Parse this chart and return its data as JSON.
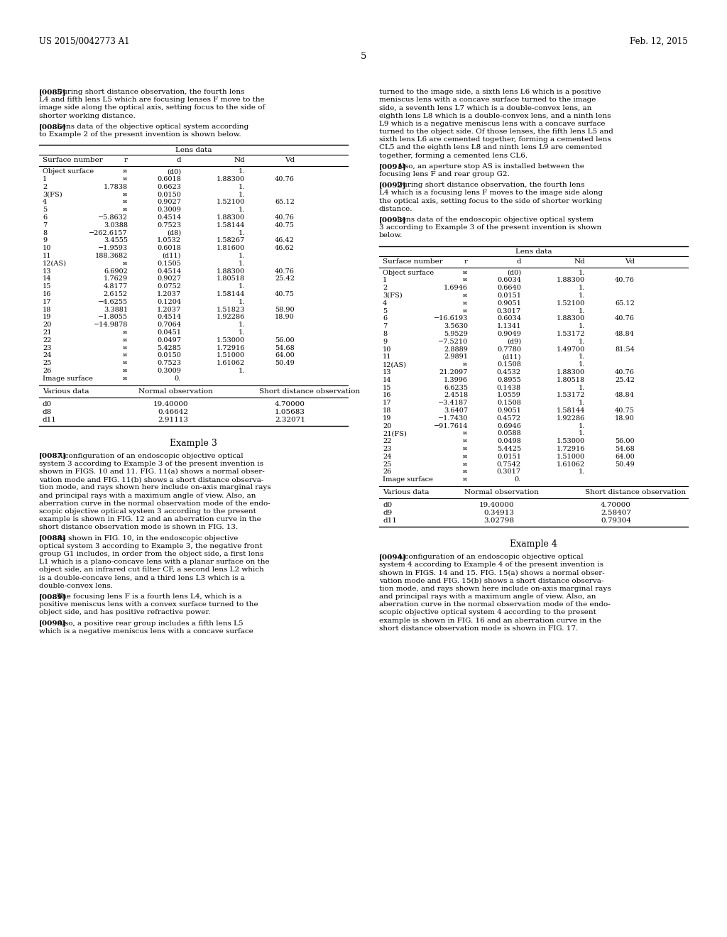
{
  "header_left": "US 2015/0042773 A1",
  "header_right": "Feb. 12, 2015",
  "page_number": "5",
  "background_color": "#ffffff",
  "table1_rows": [
    [
      "Object surface",
      "∞",
      "(d0)",
      "1.",
      ""
    ],
    [
      "1",
      "∞",
      "0.6018",
      "1.88300",
      "40.76"
    ],
    [
      "2",
      "1.7838",
      "0.6623",
      "1.",
      ""
    ],
    [
      "3(FS)",
      "∞",
      "0.0150",
      "1.",
      ""
    ],
    [
      "4",
      "∞",
      "0.9027",
      "1.52100",
      "65.12"
    ],
    [
      "5",
      "∞",
      "0.3009",
      "1.",
      ""
    ],
    [
      "6",
      "−5.8632",
      "0.4514",
      "1.88300",
      "40.76"
    ],
    [
      "7",
      "3.0388",
      "0.7523",
      "1.58144",
      "40.75"
    ],
    [
      "8",
      "−262.6157",
      "(d8)",
      "1.",
      ""
    ],
    [
      "9",
      "3.4555",
      "1.0532",
      "1.58267",
      "46.42"
    ],
    [
      "10",
      "−1.9593",
      "0.6018",
      "1.81600",
      "46.62"
    ],
    [
      "11",
      "188.3682",
      "(d11)",
      "1.",
      ""
    ],
    [
      "12(AS)",
      "∞",
      "0.1505",
      "1.",
      ""
    ],
    [
      "13",
      "6.6902",
      "0.4514",
      "1.88300",
      "40.76"
    ],
    [
      "14",
      "1.7629",
      "0.9027",
      "1.80518",
      "25.42"
    ],
    [
      "15",
      "4.8177",
      "0.0752",
      "1.",
      ""
    ],
    [
      "16",
      "2.6152",
      "1.2037",
      "1.58144",
      "40.75"
    ],
    [
      "17",
      "−4.6255",
      "0.1204",
      "1.",
      ""
    ],
    [
      "18",
      "3.3881",
      "1.2037",
      "1.51823",
      "58.90"
    ],
    [
      "19",
      "−1.8055",
      "0.4514",
      "1.92286",
      "18.90"
    ],
    [
      "20",
      "−14.9878",
      "0.7064",
      "1.",
      ""
    ],
    [
      "21",
      "∞",
      "0.0451",
      "1.",
      ""
    ],
    [
      "22",
      "∞",
      "0.0497",
      "1.53000",
      "56.00"
    ],
    [
      "23",
      "∞",
      "5.4285",
      "1.72916",
      "54.68"
    ],
    [
      "24",
      "∞",
      "0.0150",
      "1.51000",
      "64.00"
    ],
    [
      "25",
      "∞",
      "0.7523",
      "1.61062",
      "50.49"
    ],
    [
      "26",
      "∞",
      "0.3009",
      "1.",
      ""
    ],
    [
      "Image surface",
      "∞",
      "0.",
      "",
      ""
    ]
  ],
  "table1_various_rows": [
    [
      "d0",
      "19.40000",
      "4.70000"
    ],
    [
      "d8",
      "0.46642",
      "1.05683"
    ],
    [
      "d11",
      "2.91113",
      "2.32071"
    ]
  ],
  "table2_rows": [
    [
      "Object surface",
      "∞",
      "(d0)",
      "1.",
      ""
    ],
    [
      "1",
      "∞",
      "0.6034",
      "1.88300",
      "40.76"
    ],
    [
      "2",
      "1.6946",
      "0.6640",
      "1.",
      ""
    ],
    [
      "3(FS)",
      "∞",
      "0.0151",
      "1.",
      ""
    ],
    [
      "4",
      "∞",
      "0.9051",
      "1.52100",
      "65.12"
    ],
    [
      "5",
      "∞",
      "0.3017",
      "1.",
      ""
    ],
    [
      "6",
      "−16.6193",
      "0.6034",
      "1.88300",
      "40.76"
    ],
    [
      "7",
      "3.5630",
      "1.1341",
      "1.",
      ""
    ],
    [
      "8",
      "5.9529",
      "0.9049",
      "1.53172",
      "48.84"
    ],
    [
      "9",
      "−7.5210",
      "(d9)",
      "1.",
      ""
    ],
    [
      "10",
      "2.8889",
      "0.7780",
      "1.49700",
      "81.54"
    ],
    [
      "11",
      "2.9891",
      "(d11)",
      "1.",
      ""
    ],
    [
      "12(AS)",
      "∞",
      "0.1508",
      "1.",
      ""
    ],
    [
      "13",
      "21.2097",
      "0.4532",
      "1.88300",
      "40.76"
    ],
    [
      "14",
      "1.3996",
      "0.8955",
      "1.80518",
      "25.42"
    ],
    [
      "15",
      "6.6235",
      "0.1438",
      "1.",
      ""
    ],
    [
      "16",
      "2.4518",
      "1.0559",
      "1.53172",
      "48.84"
    ],
    [
      "17",
      "−3.4187",
      "0.1508",
      "1.",
      ""
    ],
    [
      "18",
      "3.6407",
      "0.9051",
      "1.58144",
      "40.75"
    ],
    [
      "19",
      "−1.7430",
      "0.4572",
      "1.92286",
      "18.90"
    ],
    [
      "20",
      "−91.7614",
      "0.6946",
      "1.",
      ""
    ],
    [
      "21(FS)",
      "∞",
      "0.0588",
      "1.",
      ""
    ],
    [
      "22",
      "∞",
      "0.0498",
      "1.53000",
      "56.00"
    ],
    [
      "23",
      "∞",
      "5.4425",
      "1.72916",
      "54.68"
    ],
    [
      "24",
      "∞",
      "0.0151",
      "1.51000",
      "64.00"
    ],
    [
      "25",
      "∞",
      "0.7542",
      "1.61062",
      "50.49"
    ],
    [
      "26",
      "∞",
      "0.3017",
      "1.",
      ""
    ],
    [
      "Image surface",
      "∞",
      "0.",
      "",
      ""
    ]
  ],
  "table2_various_rows": [
    [
      "d0",
      "19.40000",
      "4.70000"
    ],
    [
      "d9",
      "0.34913",
      "2.58407"
    ],
    [
      "d11",
      "3.02798",
      "0.79304"
    ]
  ],
  "col_headers": [
    "Surface number",
    "r",
    "d",
    "Nd",
    "Vd"
  ],
  "left_paragraphs": {
    "p85_lines": [
      "[0085] During short distance observation, the fourth lens",
      "L4 and fifth lens L5 which are focusing lenses F move to the",
      "image side along the optical axis, setting focus to the side of",
      "shorter working distance."
    ],
    "p86_lines": [
      "[0086] Lens data of the objective optical system according",
      "to Example 2 of the present invention is shown below."
    ],
    "p87_lines": [
      "[0087] A configuration of an endoscopic objective optical",
      "system 3 according to Example 3 of the present invention is",
      "shown in FIGS. 10 and 11. FIG. 11(a) shows a normal obser-",
      "vation mode and FIG. 11(b) shows a short distance observa-",
      "tion mode, and rays shown here include on-axis marginal rays",
      "and principal rays with a maximum angle of view. Also, an",
      "aberration curve in the normal observation mode of the endo-",
      "scopic objective optical system 3 according to the present",
      "example is shown in FIG. 12 and an aberration curve in the",
      "short distance observation mode is shown in FIG. 13."
    ],
    "p88_lines": [
      "[0088] As shown in FIG. 10, in the endoscopic objective",
      "optical system 3 according to Example 3, the negative front",
      "group G1 includes, in order from the object side, a first lens",
      "L1 which is a plano-concave lens with a planar surface on the",
      "object side, an infrared cut filter CF, a second lens L2 which",
      "is a double-concave lens, and a third lens L3 which is a",
      "double-convex lens."
    ],
    "p89_lines": [
      "[0089] The focusing lens F is a fourth lens L4, which is a",
      "positive meniscus lens with a convex surface turned to the",
      "object side, and has positive refractive power."
    ],
    "p90_lines": [
      "[0090] Also, a positive rear group includes a fifth lens L5",
      "which is a negative meniscus lens with a concave surface"
    ]
  },
  "right_paragraphs": {
    "cont_lines": [
      "turned to the image side, a sixth lens L6 which is a positive",
      "meniscus lens with a concave surface turned to the image",
      "side, a seventh lens L7 which is a double-convex lens, an",
      "eighth lens L8 which is a double-convex lens, and a ninth lens",
      "L9 which is a negative meniscus lens with a concave surface",
      "turned to the object side. Of those lenses, the fifth lens L5 and",
      "sixth lens L6 are cemented together, forming a cemented lens",
      "CL5 and the eighth lens L8 and ninth lens L9 are cemented",
      "together, forming a cemented lens CL6."
    ],
    "p91_lines": [
      "[0091] Also, an aperture stop AS is installed between the",
      "focusing lens F and rear group G2."
    ],
    "p92_lines": [
      "[0092] During short distance observation, the fourth lens",
      "L4 which is a focusing lens F moves to the image side along",
      "the optical axis, setting focus to the side of shorter working",
      "distance."
    ],
    "p93_lines": [
      "[0093] Lens data of the endoscopic objective optical system",
      "3 according to Example 3 of the present invention is shown",
      "below."
    ],
    "p94_lines": [
      "[0094] A configuration of an endoscopic objective optical",
      "system 4 according to Example 4 of the present invention is",
      "shown in FIGS. 14 and 15. FIG. 15(a) shows a normal obser-",
      "vation mode and FIG. 15(b) shows a short distance observa-",
      "tion mode, and rays shown here include on-axis marginal rays",
      "and principal rays with a maximum angle of view. Also, an",
      "aberration curve in the normal observation mode of the endo-",
      "scopic objective optical system 4 according to the present",
      "example is shown in FIG. 16 and an aberration curve in the",
      "short distance observation mode is shown in FIG. 17."
    ]
  }
}
